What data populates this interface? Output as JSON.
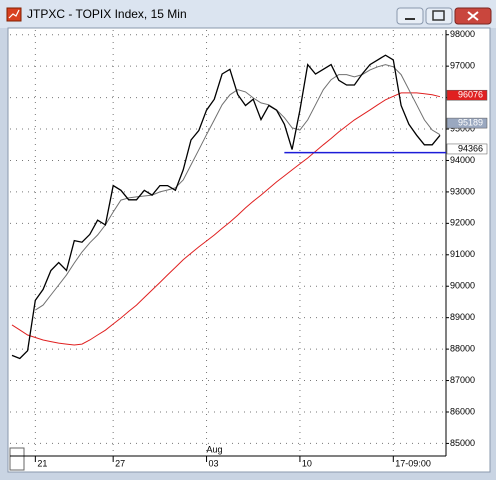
{
  "window_title": "JTPXC - TOPIX Index, 15 Min",
  "chart_data": {
    "type": "line",
    "categories": [
      null,
      null,
      null,
      "21",
      null,
      null,
      null,
      null,
      null,
      null,
      null,
      null,
      null,
      "27",
      null,
      null,
      null,
      null,
      null,
      null,
      null,
      null,
      null,
      null,
      null,
      "03",
      null,
      null,
      null,
      null,
      null,
      null,
      null,
      null,
      null,
      null,
      null,
      "10",
      null,
      null,
      null,
      null,
      null,
      null,
      null,
      null,
      null,
      null,
      null,
      "17-09:00",
      null,
      null,
      null,
      null,
      null,
      null
    ],
    "annotations": [
      {
        "text": "Aug",
        "at": 25
      }
    ],
    "series": [
      {
        "color": "#e02020",
        "width": 1,
        "values": [
          88770,
          88610,
          88450,
          88370,
          88290,
          88240,
          88190,
          88160,
          88130,
          88160,
          88290,
          88450,
          88600,
          88800,
          88990,
          89200,
          89400,
          89640,
          89880,
          90120,
          90360,
          90600,
          90840,
          91050,
          91250,
          91440,
          91630,
          91840,
          92040,
          92260,
          92490,
          92700,
          92900,
          93110,
          93320,
          93510,
          93700,
          93890,
          94080,
          94290,
          94500,
          94700,
          94910,
          95100,
          95290,
          95450,
          95610,
          95770,
          95930,
          96040,
          96150,
          96150,
          96150,
          96120,
          96090,
          96030
        ]
      },
      {
        "color": "#707070",
        "width": 1,
        "values": [
          null,
          null,
          null,
          89240,
          89400,
          89720,
          90040,
          90360,
          90740,
          91090,
          91380,
          91630,
          91950,
          92360,
          92740,
          92810,
          92840,
          92870,
          92900,
          93000,
          93060,
          93130,
          93380,
          93860,
          94340,
          94820,
          95290,
          95770,
          96090,
          96250,
          96180,
          95990,
          95830,
          95770,
          95610,
          95360,
          95040,
          94970,
          95290,
          95770,
          96250,
          96570,
          96730,
          96730,
          96660,
          96730,
          96880,
          96980,
          97050,
          96980,
          96730,
          96250,
          95770,
          95290,
          94970,
          94820
        ]
      },
      {
        "color": "#000000",
        "width": 1.3,
        "values": [
          87800,
          87700,
          87950,
          89550,
          89900,
          90500,
          90750,
          90500,
          91450,
          91400,
          91650,
          92100,
          91950,
          93200,
          93050,
          92750,
          92750,
          93050,
          92900,
          93200,
          93200,
          93050,
          93700,
          94650,
          94950,
          95600,
          95950,
          96750,
          96900,
          96100,
          95750,
          95950,
          95300,
          95750,
          95600,
          95150,
          94350,
          95600,
          97050,
          96750,
          96900,
          97050,
          96550,
          96400,
          96400,
          96750,
          97050,
          97200,
          97350,
          97200,
          95750,
          95150,
          94800,
          94500,
          94500,
          94800
        ]
      }
    ],
    "hline": {
      "value": 94250,
      "from": 35,
      "color": "#1c1cd8"
    },
    "price_labels": [
      {
        "value": 96076,
        "bg": "#e02020",
        "fg": "#ffffff"
      },
      {
        "value": 95189,
        "bg": "#9aa8c0",
        "fg": "#ffffff"
      },
      {
        "value": 94366,
        "bg": "#ffffff",
        "fg": "#000000"
      }
    ],
    "ylim": [
      84600,
      98150
    ],
    "yticks": [
      85000,
      86000,
      87000,
      88000,
      89000,
      90000,
      91000,
      92000,
      93000,
      94000,
      95000,
      96000,
      97000,
      98000
    ],
    "grid": true
  }
}
